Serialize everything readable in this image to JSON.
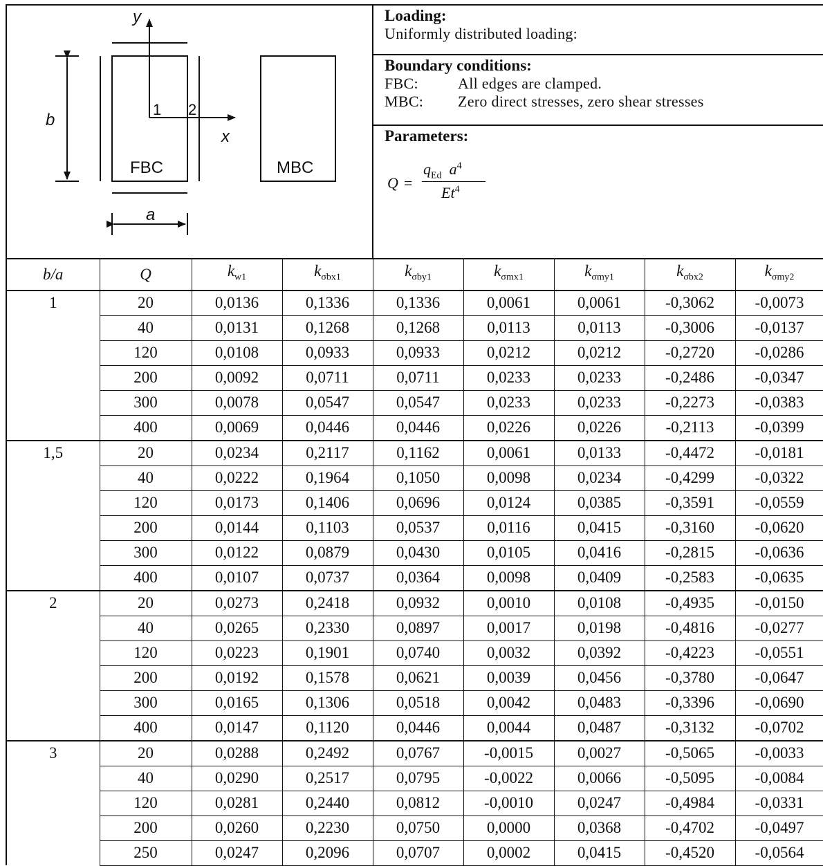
{
  "figure": {
    "y_label": "y",
    "x_label": "x",
    "b_label": "b",
    "a_label": "a",
    "point_1": "1",
    "point_2": "2",
    "fbc_label": "FBC",
    "mbc_label": "MBC"
  },
  "info": {
    "loading_heading": "Loading:",
    "loading_text": "Uniformly distributed loading:",
    "boundary_heading": "Boundary conditions:",
    "fbc_key": "FBC:",
    "fbc_text": "All edges are clamped.",
    "mbc_key": "MBC:",
    "mbc_text": "Zero direct stresses, zero shear stresses",
    "parameters_heading": "Parameters:",
    "formula": {
      "lhs": "Q",
      "eq": "=",
      "num_q": "q",
      "num_q_sub": "Ed",
      "num_a": "a",
      "num_a_sup": "4",
      "den_e": "Et",
      "den_sup": "4"
    }
  },
  "table": {
    "columns": [
      {
        "main": "b/a",
        "sub": ""
      },
      {
        "main": "Q",
        "sub": ""
      },
      {
        "main": "k",
        "sub": "w1"
      },
      {
        "main": "k",
        "sub": "σbx1"
      },
      {
        "main": "k",
        "sub": "σby1"
      },
      {
        "main": "k",
        "sub": "σmx1"
      },
      {
        "main": "k",
        "sub": "σmy1"
      },
      {
        "main": "k",
        "sub": "σbx2"
      },
      {
        "main": "k",
        "sub": "σmy2"
      }
    ],
    "groups": [
      {
        "ba": "1",
        "rows": [
          [
            "20",
            "0,0136",
            "0,1336",
            "0,1336",
            "0,0061",
            "0,0061",
            "-0,3062",
            "-0,0073"
          ],
          [
            "40",
            "0,0131",
            "0,1268",
            "0,1268",
            "0,0113",
            "0,0113",
            "-0,3006",
            "-0,0137"
          ],
          [
            "120",
            "0,0108",
            "0,0933",
            "0,0933",
            "0,0212",
            "0,0212",
            "-0,2720",
            "-0,0286"
          ],
          [
            "200",
            "0,0092",
            "0,0711",
            "0,0711",
            "0,0233",
            "0,0233",
            "-0,2486",
            "-0,0347"
          ],
          [
            "300",
            "0,0078",
            "0,0547",
            "0,0547",
            "0,0233",
            "0,0233",
            "-0,2273",
            "-0,0383"
          ],
          [
            "400",
            "0,0069",
            "0,0446",
            "0,0446",
            "0,0226",
            "0,0226",
            "-0,2113",
            "-0,0399"
          ]
        ]
      },
      {
        "ba": "1,5",
        "rows": [
          [
            "20",
            "0,0234",
            "0,2117",
            "0,1162",
            "0,0061",
            "0,0133",
            "-0,4472",
            "-0,0181"
          ],
          [
            "40",
            "0,0222",
            "0,1964",
            "0,1050",
            "0,0098",
            "0,0234",
            "-0,4299",
            "-0,0322"
          ],
          [
            "120",
            "0,0173",
            "0,1406",
            "0,0696",
            "0,0124",
            "0,0385",
            "-0,3591",
            "-0,0559"
          ],
          [
            "200",
            "0,0144",
            "0,1103",
            "0,0537",
            "0,0116",
            "0,0415",
            "-0,3160",
            "-0,0620"
          ],
          [
            "300",
            "0,0122",
            "0,0879",
            "0,0430",
            "0,0105",
            "0,0416",
            "-0,2815",
            "-0,0636"
          ],
          [
            "400",
            "0,0107",
            "0,0737",
            "0,0364",
            "0,0098",
            "0,0409",
            "-0,2583",
            "-0,0635"
          ]
        ]
      },
      {
        "ba": "2",
        "rows": [
          [
            "20",
            "0,0273",
            "0,2418",
            "0,0932",
            "0,0010",
            "0,0108",
            "-0,4935",
            "-0,0150"
          ],
          [
            "40",
            "0,0265",
            "0,2330",
            "0,0897",
            "0,0017",
            "0,0198",
            "-0,4816",
            "-0,0277"
          ],
          [
            "120",
            "0,0223",
            "0,1901",
            "0,0740",
            "0,0032",
            "0,0392",
            "-0,4223",
            "-0,0551"
          ],
          [
            "200",
            "0,0192",
            "0,1578",
            "0,0621",
            "0,0039",
            "0,0456",
            "-0,3780",
            "-0,0647"
          ],
          [
            "300",
            "0,0165",
            "0,1306",
            "0,0518",
            "0,0042",
            "0,0483",
            "-0,3396",
            "-0,0690"
          ],
          [
            "400",
            "0,0147",
            "0,1120",
            "0,0446",
            "0,0044",
            "0,0487",
            "-0,3132",
            "-0,0702"
          ]
        ]
      },
      {
        "ba": "3",
        "rows": [
          [
            "20",
            "0,0288",
            "0,2492",
            "0,0767",
            "-0,0015",
            "0,0027",
            "-0,5065",
            "-0,0033"
          ],
          [
            "40",
            "0,0290",
            "0,2517",
            "0,0795",
            "-0,0022",
            "0,0066",
            "-0,5095",
            "-0,0084"
          ],
          [
            "120",
            "0,0281",
            "0,2440",
            "0,0812",
            "-0,0010",
            "0,0247",
            "-0,4984",
            "-0,0331"
          ],
          [
            "200",
            "0,0260",
            "0,2230",
            "0,0750",
            "0,0000",
            "0,0368",
            "-0,4702",
            "-0,0497"
          ],
          [
            "250",
            "0,0247",
            "0,2096",
            "0,0707",
            "0,0002",
            "0,0415",
            "-0,4520",
            "-0,0564"
          ]
        ]
      }
    ]
  }
}
